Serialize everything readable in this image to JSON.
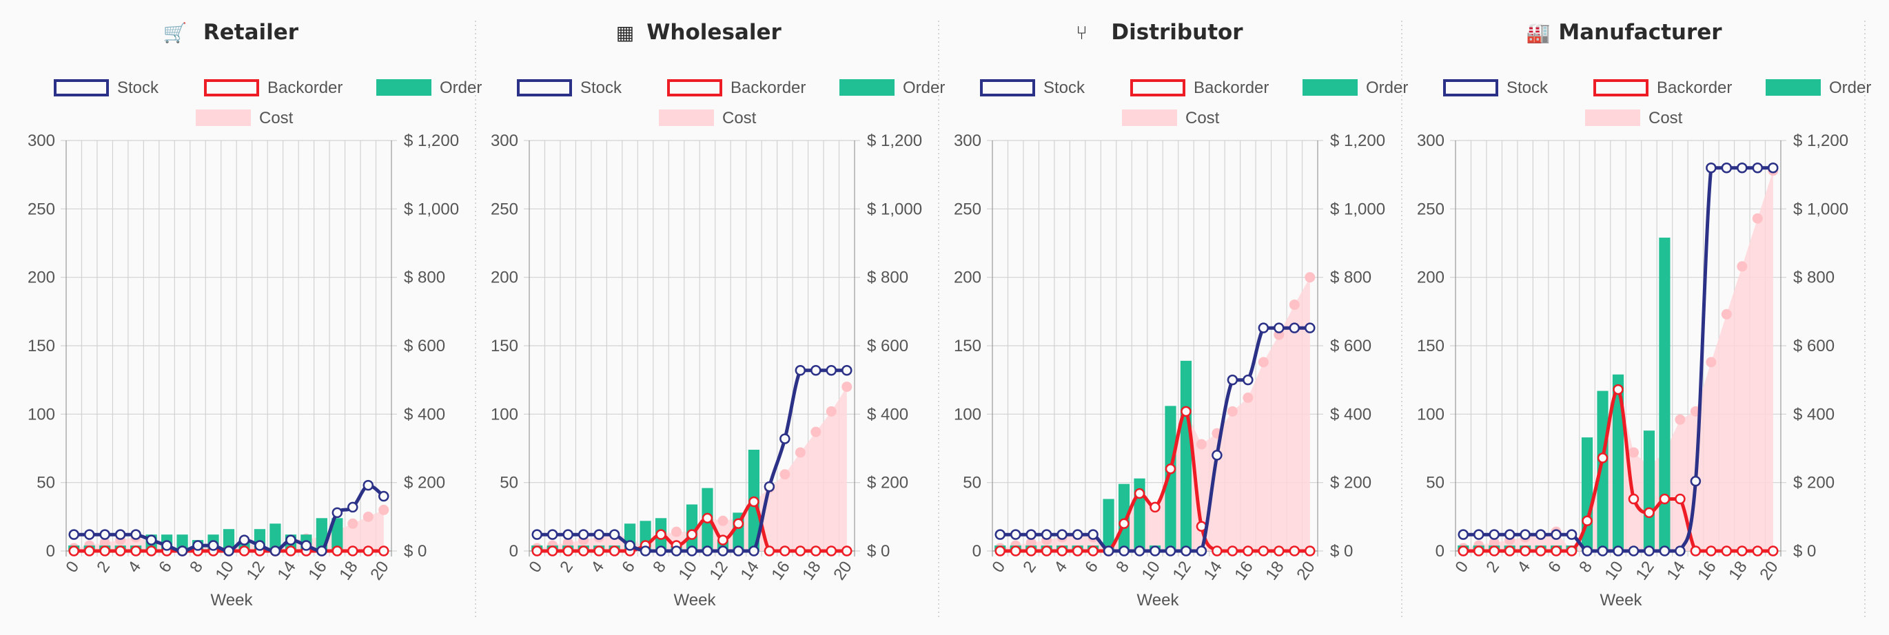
{
  "panels": [
    {
      "title": "Retailer",
      "icon": "shopping-cart-icon",
      "icon_glyph": "🛒",
      "legend": {
        "stock": "Stock",
        "backorder": "Backorder",
        "order": "Order",
        "cost": "Cost"
      },
      "y_ticks": [
        "0",
        "50",
        "100",
        "150",
        "200",
        "250",
        "300"
      ],
      "y2_ticks": [
        "$ 0",
        "$ 200",
        "$ 400",
        "$ 600",
        "$ 800",
        "$ 1,000",
        "$ 1,200"
      ],
      "x_ticks": [
        "0",
        "2",
        "4",
        "6",
        "8",
        "10",
        "12",
        "14",
        "16",
        "18",
        "20"
      ],
      "x_label": "Week"
    },
    {
      "title": "Wholesaler",
      "icon": "building-icon",
      "icon_glyph": "▦",
      "legend": {
        "stock": "Stock",
        "backorder": "Backorder",
        "order": "Order",
        "cost": "Cost"
      },
      "y_ticks": [
        "0",
        "50",
        "100",
        "150",
        "200",
        "250",
        "300"
      ],
      "y2_ticks": [
        "$ 0",
        "$ 200",
        "$ 400",
        "$ 600",
        "$ 800",
        "$ 1,000",
        "$ 1,200"
      ],
      "x_ticks": [
        "0",
        "2",
        "4",
        "6",
        "8",
        "10",
        "12",
        "14",
        "16",
        "18",
        "20"
      ],
      "x_label": "Week"
    },
    {
      "title": "Distributor",
      "icon": "fork-icon",
      "icon_glyph": "⑂",
      "legend": {
        "stock": "Stock",
        "backorder": "Backorder",
        "order": "Order",
        "cost": "Cost"
      },
      "y_ticks": [
        "0",
        "50",
        "100",
        "150",
        "200",
        "250",
        "300"
      ],
      "y2_ticks": [
        "$ 0",
        "$ 200",
        "$ 400",
        "$ 600",
        "$ 800",
        "$ 1,000",
        "$ 1,200"
      ],
      "x_ticks": [
        "0",
        "2",
        "4",
        "6",
        "8",
        "10",
        "12",
        "14",
        "16",
        "18",
        "20"
      ],
      "x_label": "Week"
    },
    {
      "title": "Manufacturer",
      "icon": "factory-icon",
      "icon_glyph": "🏭",
      "legend": {
        "stock": "Stock",
        "backorder": "Backorder",
        "order": "Order",
        "cost": "Cost"
      },
      "y_ticks": [
        "0",
        "50",
        "100",
        "150",
        "200",
        "250",
        "300"
      ],
      "y2_ticks": [
        "$ 0",
        "$ 200",
        "$ 400",
        "$ 600",
        "$ 800",
        "$ 1,000",
        "$ 1,200"
      ],
      "x_ticks": [
        "0",
        "2",
        "4",
        "6",
        "8",
        "10",
        "12",
        "14",
        "16",
        "18",
        "20"
      ],
      "x_label": "Week"
    }
  ],
  "colors": {
    "stock": "#2b3187",
    "backorder": "#ee1c25",
    "order": "#20bf94",
    "cost_fill": "#ffd6d9",
    "cost_point": "#ffc1c6",
    "grid": "#d2d2d2",
    "axis": "#999999",
    "divider": "#c8c8c8"
  },
  "chart_data": [
    {
      "type": "mixed",
      "title": "Retailer",
      "xlabel": "Week",
      "ylim": [
        0,
        300
      ],
      "y2lim": [
        0,
        1200
      ],
      "x": [
        0,
        1,
        2,
        3,
        4,
        5,
        6,
        7,
        8,
        9,
        10,
        11,
        12,
        13,
        14,
        15,
        16,
        17,
        18,
        19,
        20
      ],
      "series": [
        {
          "name": "Stock",
          "type": "line",
          "axis": "left",
          "values": [
            12,
            12,
            12,
            12,
            12,
            8,
            4,
            0,
            4,
            4,
            0,
            8,
            4,
            0,
            8,
            4,
            0,
            28,
            32,
            48,
            40
          ]
        },
        {
          "name": "Backorder",
          "type": "line",
          "axis": "left",
          "values": [
            0,
            0,
            0,
            0,
            0,
            0,
            0,
            0,
            0,
            0,
            0,
            0,
            0,
            0,
            0,
            0,
            0,
            0,
            0,
            0,
            0
          ]
        },
        {
          "name": "Order",
          "type": "bar",
          "axis": "left",
          "values": [
            4,
            4,
            4,
            4,
            4,
            12,
            12,
            12,
            8,
            12,
            16,
            8,
            16,
            20,
            12,
            12,
            24,
            24,
            0,
            0,
            0
          ]
        },
        {
          "name": "Cost",
          "type": "area",
          "axis": "right",
          "values": [
            8,
            16,
            24,
            32,
            40,
            28,
            16,
            0,
            12,
            12,
            0,
            24,
            12,
            0,
            32,
            36,
            40,
            60,
            80,
            100,
            120
          ]
        }
      ],
      "legend_position": "top",
      "grid": true
    },
    {
      "type": "mixed",
      "title": "Wholesaler",
      "xlabel": "Week",
      "ylim": [
        0,
        300
      ],
      "y2lim": [
        0,
        1200
      ],
      "x": [
        0,
        1,
        2,
        3,
        4,
        5,
        6,
        7,
        8,
        9,
        10,
        11,
        12,
        13,
        14,
        15,
        16,
        17,
        18,
        19,
        20
      ],
      "series": [
        {
          "name": "Stock",
          "type": "line",
          "axis": "left",
          "values": [
            12,
            12,
            12,
            12,
            12,
            12,
            4,
            0,
            0,
            0,
            0,
            0,
            0,
            0,
            0,
            47,
            82,
            132,
            132,
            132,
            132
          ]
        },
        {
          "name": "Backorder",
          "type": "line",
          "axis": "left",
          "values": [
            0,
            0,
            0,
            0,
            0,
            0,
            0,
            4,
            12,
            4,
            12,
            24,
            8,
            20,
            36,
            0,
            0,
            0,
            0,
            0,
            0
          ]
        },
        {
          "name": "Order",
          "type": "bar",
          "axis": "left",
          "values": [
            4,
            4,
            4,
            4,
            4,
            4,
            20,
            22,
            24,
            4,
            34,
            46,
            8,
            28,
            74,
            0,
            0,
            0,
            0,
            0,
            0
          ]
        },
        {
          "name": "Cost",
          "type": "area",
          "axis": "right",
          "values": [
            8,
            16,
            24,
            32,
            40,
            48,
            40,
            8,
            48,
            56,
            56,
            96,
            88,
            96,
            144,
            184,
            224,
            288,
            348,
            408,
            480
          ]
        }
      ],
      "legend_position": "top",
      "grid": true
    },
    {
      "type": "mixed",
      "title": "Distributor",
      "xlabel": "Week",
      "ylim": [
        0,
        300
      ],
      "y2lim": [
        0,
        1200
      ],
      "x": [
        0,
        1,
        2,
        3,
        4,
        5,
        6,
        7,
        8,
        9,
        10,
        11,
        12,
        13,
        14,
        15,
        16,
        17,
        18,
        19,
        20
      ],
      "series": [
        {
          "name": "Stock",
          "type": "line",
          "axis": "left",
          "values": [
            12,
            12,
            12,
            12,
            12,
            12,
            12,
            0,
            0,
            0,
            0,
            0,
            0,
            0,
            70,
            125,
            125,
            163,
            163,
            163,
            163
          ]
        },
        {
          "name": "Backorder",
          "type": "line",
          "axis": "left",
          "values": [
            0,
            0,
            0,
            0,
            0,
            0,
            0,
            0,
            20,
            42,
            32,
            60,
            102,
            18,
            0,
            0,
            0,
            0,
            0,
            0,
            0
          ]
        },
        {
          "name": "Order",
          "type": "bar",
          "axis": "left",
          "values": [
            4,
            4,
            4,
            4,
            4,
            4,
            4,
            38,
            49,
            53,
            4,
            106,
            139,
            0,
            0,
            0,
            0,
            0,
            0,
            0,
            0
          ]
        },
        {
          "name": "Cost",
          "type": "area",
          "axis": "right",
          "values": [
            8,
            16,
            24,
            32,
            40,
            48,
            40,
            0,
            80,
            168,
            128,
            240,
            408,
            312,
            344,
            408,
            448,
            552,
            632,
            720,
            800
          ]
        }
      ],
      "legend_position": "top",
      "grid": true
    },
    {
      "type": "mixed",
      "title": "Manufacturer",
      "xlabel": "Week",
      "ylim": [
        0,
        300
      ],
      "y2lim": [
        0,
        1200
      ],
      "x": [
        0,
        1,
        2,
        3,
        4,
        5,
        6,
        7,
        8,
        9,
        10,
        11,
        12,
        13,
        14,
        15,
        16,
        17,
        18,
        19,
        20
      ],
      "series": [
        {
          "name": "Stock",
          "type": "line",
          "axis": "left",
          "values": [
            12,
            12,
            12,
            12,
            12,
            12,
            12,
            12,
            0,
            0,
            0,
            0,
            0,
            0,
            0,
            51,
            280,
            280,
            280,
            280,
            280
          ]
        },
        {
          "name": "Backorder",
          "type": "line",
          "axis": "left",
          "values": [
            0,
            0,
            0,
            0,
            0,
            0,
            0,
            0,
            22,
            68,
            118,
            38,
            28,
            38,
            38,
            0,
            0,
            0,
            0,
            0,
            0
          ]
        },
        {
          "name": "Order",
          "type": "bar",
          "axis": "left",
          "values": [
            4,
            4,
            4,
            4,
            4,
            4,
            4,
            4,
            83,
            117,
            129,
            0,
            88,
            229,
            0,
            0,
            0,
            0,
            0,
            0,
            0
          ]
        },
        {
          "name": "Cost",
          "type": "area",
          "axis": "right",
          "values": [
            8,
            16,
            24,
            32,
            40,
            48,
            56,
            0,
            88,
            272,
            472,
            288,
            248,
            288,
            384,
            408,
            552,
            692,
            832,
            972,
            1112
          ]
        }
      ],
      "legend_position": "top",
      "grid": true
    }
  ]
}
